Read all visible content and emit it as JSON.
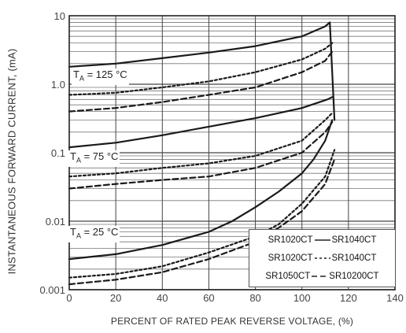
{
  "chart_data": {
    "type": "line",
    "xlabel": "PERCENT OF RATED PEAK REVERSE VOLTAGE, (%)",
    "ylabel": "INSTANTANEOUS FORWARD CURRENT, (mA)",
    "xlim": [
      0,
      140
    ],
    "ylim": [
      0.001,
      10
    ],
    "y_scale": "log",
    "grid": true,
    "x_ticks": [
      "0",
      "20",
      "40",
      "60",
      "80",
      "100",
      "120",
      "140"
    ],
    "y_ticks": [
      "0.001",
      "0.01",
      "0.1",
      "1.0",
      "10"
    ],
    "legend_position": "bottom-right",
    "legend": [
      {
        "label_a": "SR1020CT",
        "label_b": "SR1040CT",
        "dash": "solid"
      },
      {
        "label_a": "SR1020CT",
        "label_b": "SR1040CT",
        "dash": "dotted"
      },
      {
        "label_a": "SR1050CT",
        "label_b": "SR10200CT",
        "dash": "dashed"
      }
    ],
    "temperature_labels": [
      {
        "text": "T",
        "sub": "A",
        "rest": " = 125 °C"
      },
      {
        "text": "T",
        "sub": "A",
        "rest": " = 75 °C"
      },
      {
        "text": "T",
        "sub": "A",
        "rest": " = 25 °C"
      }
    ],
    "series": [
      {
        "group": "TA = 125 °C",
        "dash": "solid",
        "x": [
          0,
          20,
          40,
          60,
          80,
          100,
          110,
          112,
          114
        ],
        "y": [
          1.8,
          2.0,
          2.4,
          2.9,
          3.6,
          5.0,
          7.0,
          8.0,
          0.3
        ]
      },
      {
        "group": "TA = 125 °C",
        "dash": "dotted",
        "x": [
          0,
          20,
          40,
          60,
          80,
          100,
          110,
          113
        ],
        "y": [
          0.7,
          0.75,
          0.9,
          1.1,
          1.5,
          2.3,
          3.3,
          4.0
        ]
      },
      {
        "group": "TA = 125 °C",
        "dash": "dashed",
        "x": [
          0,
          20,
          40,
          60,
          80,
          100,
          110,
          113
        ],
        "y": [
          0.4,
          0.45,
          0.55,
          0.7,
          0.9,
          1.5,
          2.2,
          3.0
        ]
      },
      {
        "group": "TA = 75 °C",
        "dash": "solid",
        "x": [
          0,
          20,
          40,
          60,
          80,
          100,
          111,
          113
        ],
        "y": [
          0.12,
          0.14,
          0.18,
          0.24,
          0.32,
          0.45,
          0.6,
          0.65
        ]
      },
      {
        "group": "TA = 75 °C",
        "dash": "dotted",
        "x": [
          0,
          20,
          40,
          60,
          80,
          100,
          110,
          113
        ],
        "y": [
          0.045,
          0.05,
          0.06,
          0.07,
          0.09,
          0.15,
          0.3,
          0.38
        ]
      },
      {
        "group": "TA = 75 °C",
        "dash": "dashed",
        "x": [
          0,
          20,
          40,
          60,
          80,
          100,
          110,
          113
        ],
        "y": [
          0.03,
          0.035,
          0.04,
          0.045,
          0.06,
          0.1,
          0.2,
          0.28
        ]
      },
      {
        "group": "TA = 25 °C",
        "dash": "solid",
        "x": [
          0,
          20,
          40,
          60,
          70,
          80,
          90,
          100,
          105,
          110,
          113
        ],
        "y": [
          0.0028,
          0.0033,
          0.0045,
          0.007,
          0.01,
          0.016,
          0.027,
          0.05,
          0.08,
          0.15,
          0.3
        ]
      },
      {
        "group": "TA = 25 °C",
        "dash": "dotted",
        "x": [
          0,
          20,
          40,
          60,
          80,
          90,
          100,
          110,
          114
        ],
        "y": [
          0.0015,
          0.0017,
          0.0022,
          0.0035,
          0.006,
          0.009,
          0.018,
          0.045,
          0.11
        ]
      },
      {
        "group": "TA = 25 °C",
        "dash": "dashed",
        "x": [
          0,
          20,
          40,
          60,
          80,
          90,
          100,
          110,
          114
        ],
        "y": [
          0.0012,
          0.0014,
          0.0018,
          0.0028,
          0.005,
          0.008,
          0.014,
          0.035,
          0.08
        ]
      }
    ]
  }
}
